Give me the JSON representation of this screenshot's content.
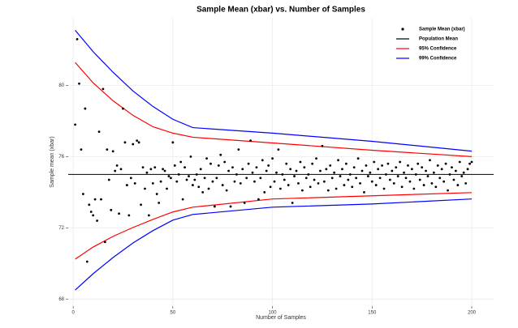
{
  "chart_data": {
    "type": "scatter",
    "title": "Sample Mean (xbar) vs. Number of Samples",
    "x_label": "Number of Samples",
    "y_label": "Sample mean (xbar)",
    "xlim": [
      -2.5,
      211
    ],
    "ylim": [
      67.6,
      83.8
    ],
    "xticks": [
      0,
      50,
      100,
      150,
      200
    ],
    "yticks": [
      68,
      72,
      76,
      80
    ],
    "grid": true,
    "legend": "top-right",
    "series": [
      {
        "name": "Sample Mean (xbar)",
        "color": "#000000",
        "style": "points",
        "x": [
          1,
          2,
          3,
          4,
          5,
          6,
          7,
          8,
          9,
          10,
          11,
          12,
          13,
          14,
          15,
          16,
          17,
          18,
          19,
          20,
          21,
          22,
          23,
          24,
          25,
          26,
          27,
          28,
          29,
          30,
          31,
          32,
          33,
          34,
          35,
          36,
          37,
          38,
          39,
          40,
          41,
          42,
          43,
          44,
          45,
          46,
          47,
          48,
          49,
          50,
          51,
          52,
          53,
          54,
          55,
          56,
          57,
          58,
          59,
          60,
          61,
          62,
          63,
          64,
          65,
          66,
          67,
          68,
          69,
          70,
          71,
          72,
          73,
          74,
          75,
          76,
          77,
          78,
          79,
          80,
          81,
          82,
          83,
          84,
          85,
          86,
          87,
          88,
          89,
          90,
          91,
          92,
          93,
          94,
          95,
          96,
          97,
          98,
          99,
          100,
          101,
          102,
          103,
          104,
          105,
          106,
          107,
          108,
          109,
          110,
          111,
          112,
          113,
          114,
          115,
          116,
          117,
          118,
          119,
          120,
          121,
          122,
          123,
          124,
          125,
          126,
          127,
          128,
          129,
          130,
          131,
          132,
          133,
          134,
          135,
          136,
          137,
          138,
          139,
          140,
          141,
          142,
          143,
          144,
          145,
          146,
          147,
          148,
          149,
          150,
          151,
          152,
          153,
          154,
          155,
          156,
          157,
          158,
          159,
          160,
          161,
          162,
          163,
          164,
          165,
          166,
          167,
          168,
          169,
          170,
          171,
          172,
          173,
          174,
          175,
          176,
          177,
          178,
          179,
          180,
          181,
          182,
          183,
          184,
          185,
          186,
          187,
          188,
          189,
          190,
          191,
          192,
          193,
          194,
          195,
          196,
          197,
          198,
          199,
          200
        ],
        "values": [
          77.8,
          82.6,
          80.1,
          76.4,
          73.9,
          78.7,
          70.1,
          73.3,
          72.9,
          72.7,
          73.6,
          72.4,
          77.4,
          73.6,
          79.8,
          71.2,
          76.4,
          74.7,
          73.0,
          76.3,
          75.2,
          75.5,
          72.8,
          75.3,
          78.7,
          76.8,
          74.4,
          72.7,
          74.8,
          76.7,
          74.5,
          76.9,
          76.8,
          73.3,
          75.4,
          74.2,
          75.1,
          72.7,
          75.3,
          74.5,
          75.4,
          73.9,
          73.4,
          74.6,
          75.3,
          75.2,
          74.2,
          74.9,
          74.8,
          76.8,
          75.5,
          74.6,
          75.0,
          75.7,
          73.6,
          75.4,
          74.7,
          74.9,
          76.0,
          74.4,
          74.7,
          75.0,
          74.3,
          75.3,
          74.0,
          74.8,
          75.9,
          74.2,
          75.6,
          74.6,
          73.2,
          74.8,
          75.5,
          76.1,
          74.4,
          75.7,
          74.1,
          75.2,
          73.2,
          75.4,
          74.6,
          75.0,
          76.4,
          74.5,
          75.3,
          73.4,
          74.8,
          75.6,
          76.9,
          75.1,
          74.6,
          75.4,
          73.6,
          74.8,
          75.8,
          74.0,
          75.2,
          75.5,
          74.3,
          75.9,
          74.6,
          75.1,
          76.4,
          74.2,
          75.0,
          74.7,
          75.6,
          74.4,
          75.3,
          73.4,
          74.9,
          75.2,
          74.5,
          75.7,
          74.1,
          75.4,
          74.8,
          75.0,
          74.3,
          75.6,
          74.7,
          75.9,
          74.5,
          75.2,
          76.6,
          74.6,
          75.3,
          74.1,
          75.5,
          74.8,
          75.1,
          74.2,
          75.8,
          74.9,
          75.3,
          74.4,
          75.6,
          74.7,
          75.0,
          74.3,
          75.4,
          74.8,
          75.9,
          74.5,
          75.2,
          74.0,
          75.5,
          74.9,
          75.1,
          74.6,
          75.7,
          74.4,
          75.3,
          74.8,
          75.5,
          74.2,
          75.0,
          75.6,
          74.7,
          75.2,
          74.5,
          75.4,
          74.9,
          75.7,
          74.3,
          75.1,
          74.8,
          75.5,
          74.6,
          75.3,
          74.2,
          75.0,
          75.6,
          74.7,
          75.4,
          74.4,
          75.2,
          74.9,
          75.8,
          74.5,
          75.1,
          74.3,
          75.5,
          74.8,
          75.3,
          74.6,
          75.6,
          74.1,
          75.0,
          75.4,
          74.7,
          75.2,
          74.4,
          75.7,
          74.9,
          75.1,
          74.5,
          75.3,
          75.6,
          75.7
        ]
      },
      {
        "name": "Population Mean",
        "color": "#000000",
        "style": "hline",
        "value": 75
      },
      {
        "name": "95% Confidence",
        "color": "#ff0000",
        "style": "band",
        "x": [
          1,
          10,
          20,
          30,
          40,
          50,
          60,
          100,
          150,
          200
        ],
        "upper": [
          81.29,
          80.15,
          79.14,
          78.32,
          77.68,
          77.32,
          77.09,
          76.77,
          76.36,
          76.0
        ],
        "lower": [
          70.24,
          70.92,
          71.52,
          72.02,
          72.47,
          72.89,
          73.16,
          73.62,
          73.8,
          73.98
        ]
      },
      {
        "name": "99% Confidence",
        "color": "#0000ff",
        "style": "band",
        "x": [
          1,
          10,
          20,
          30,
          40,
          50,
          60,
          100,
          150,
          200
        ],
        "upper": [
          83.1,
          81.9,
          80.74,
          79.69,
          78.82,
          78.1,
          77.63,
          77.32,
          76.86,
          76.31
        ],
        "lower": [
          68.5,
          69.42,
          70.33,
          71.15,
          71.84,
          72.43,
          72.75,
          73.16,
          73.34,
          73.62
        ]
      }
    ]
  }
}
